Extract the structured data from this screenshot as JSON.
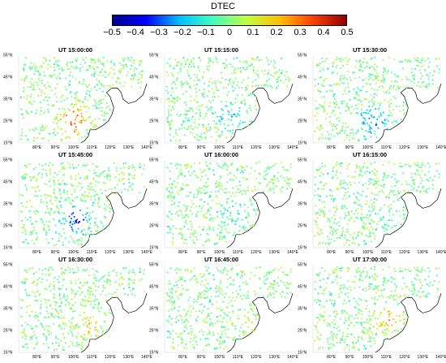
{
  "colorbar": {
    "title": "DTEC",
    "ticks": [
      "−0.5",
      "−0.4",
      "−0.3",
      "−0.2",
      "−0.1",
      "0",
      "0.1",
      "0.2",
      "0.3",
      "0.4",
      "0.5"
    ],
    "range": [
      -0.5,
      0.5
    ],
    "colors": [
      "#00008f",
      "#0000ff",
      "#00bfff",
      "#40ffbf",
      "#bfff40",
      "#ffbf00",
      "#ff4000",
      "#8f0000"
    ]
  },
  "chart_data": {
    "type": "scatter",
    "map_extent": {
      "lon": [
        70,
        140
      ],
      "lat": [
        15,
        55
      ]
    },
    "lat_ticks": [
      "15°N",
      "25°N",
      "35°N",
      "45°N",
      "55°N"
    ],
    "lon_ticks": [
      "80°E",
      "90°E",
      "100°E",
      "110°E",
      "120°E",
      "130°E",
      "140°E"
    ],
    "panels": [
      {
        "title": "UT 15:00:00",
        "anomaly": {
          "lon": 100,
          "lat": 25,
          "value": 0.35
        }
      },
      {
        "title": "UT 15:15:00",
        "anomaly": {
          "lon": 106,
          "lat": 26,
          "value": -0.2
        }
      },
      {
        "title": "UT 15:30:00",
        "anomaly": {
          "lon": 103,
          "lat": 25,
          "value": -0.3
        }
      },
      {
        "title": "UT 15:45:00",
        "anomaly": {
          "lon": 101,
          "lat": 28,
          "value": -0.35
        }
      },
      {
        "title": "UT 16:00:00",
        "anomaly": {
          "lon": 108,
          "lat": 30,
          "value": -0.1
        }
      },
      {
        "title": "UT 16:15:00",
        "anomaly": {
          "lon": 110,
          "lat": 30,
          "value": -0.1
        }
      },
      {
        "title": "UT 16:30:00",
        "anomaly": {
          "lon": 108,
          "lat": 27,
          "value": 0.15
        }
      },
      {
        "title": "UT 16:45:00",
        "anomaly": {
          "lon": 112,
          "lat": 30,
          "value": 0.1
        }
      },
      {
        "title": "UT 17:00:00",
        "anomaly": {
          "lon": 112,
          "lat": 30,
          "value": 0.2
        }
      }
    ]
  }
}
